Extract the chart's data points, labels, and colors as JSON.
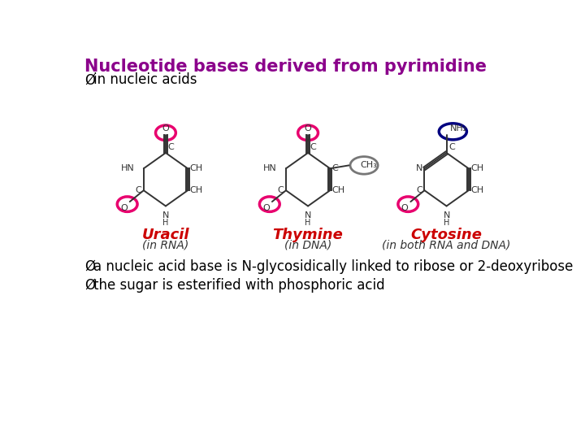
{
  "title": "Nucleotide bases derived from pyrimidine",
  "title_color": "#8B008B",
  "title_fontsize": 15,
  "bullet_arrow": "Ø",
  "bullet1_text": " in nucleic acids",
  "bullet2_text": " a nucleic acid base is N-glycosidically linked to ribose or 2-deoxyribose",
  "bullet3_text": " the sugar is esterified with phosphoric acid",
  "bullet_fontsize": 12,
  "compound_labels": [
    "Uracil",
    "Thymine",
    "Cytosine"
  ],
  "compound_sublabels": [
    "(in RNA)",
    "(in DNA)",
    "(in both RNA and DNA)"
  ],
  "label_color": "#cc0000",
  "sublabel_color": "#333333",
  "label_fontsize": 13,
  "sublabel_fontsize": 10,
  "pink_circle_color": "#E8006E",
  "blue_circle_color": "#000080",
  "gray_circle_color": "#777777",
  "bg_color": "#ffffff",
  "structure_color": "#333333"
}
